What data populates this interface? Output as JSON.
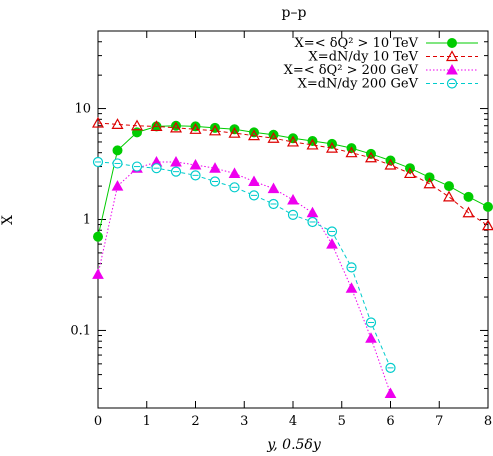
{
  "chart_data": {
    "type": "line",
    "title": "p–p",
    "xlabel": "y, 0.5δy",
    "ylabel": "X",
    "xlim": [
      0,
      8
    ],
    "ylim": [
      0.02,
      50
    ],
    "yscale": "log",
    "x_ticks": [
      "0",
      "1",
      "2",
      "3",
      "4",
      "5",
      "6",
      "7",
      "8"
    ],
    "y_ticks": [
      {
        "value": 0.1,
        "label": "0.1"
      },
      {
        "value": 1,
        "label": "1"
      },
      {
        "value": 10,
        "label": "10"
      }
    ],
    "grid": false,
    "legend_position": "top-right",
    "series": [
      {
        "name": "X=< δQ² > 10 TeV",
        "color": "#00cc00",
        "marker": "filled-circle",
        "line": "solid",
        "x": [
          0,
          0.4,
          0.8,
          1.2,
          1.6,
          2.0,
          2.4,
          2.8,
          3.2,
          3.6,
          4.0,
          4.4,
          4.8,
          5.2,
          5.6,
          6.0,
          6.4,
          6.8,
          7.2,
          7.6,
          8.0
        ],
        "y": [
          0.7,
          4.2,
          6.1,
          6.9,
          7.0,
          6.9,
          6.7,
          6.5,
          6.1,
          5.8,
          5.4,
          5.1,
          4.8,
          4.4,
          3.9,
          3.4,
          2.9,
          2.4,
          2.0,
          1.6,
          1.3
        ]
      },
      {
        "name": "X=dN/dy 10 TeV",
        "color": "#dd0000",
        "marker": "open-triangle",
        "line": "dashed",
        "x": [
          0,
          0.4,
          0.8,
          1.2,
          1.6,
          2.0,
          2.4,
          2.8,
          3.2,
          3.6,
          4.0,
          4.4,
          4.8,
          5.2,
          5.6,
          6.0,
          6.4,
          6.8,
          7.2,
          7.6,
          8.0
        ],
        "y": [
          7.4,
          7.2,
          7.0,
          6.9,
          6.7,
          6.5,
          6.3,
          6.0,
          5.7,
          5.4,
          5.0,
          4.7,
          4.4,
          4.0,
          3.6,
          3.1,
          2.6,
          2.1,
          1.6,
          1.15,
          0.88
        ]
      },
      {
        "name": "X=< δQ² > 200 GeV",
        "color": "#ee00ee",
        "marker": "filled-triangle",
        "line": "dotted",
        "x": [
          0,
          0.4,
          0.8,
          1.2,
          1.6,
          2.0,
          2.4,
          2.8,
          3.2,
          3.6,
          4.0,
          4.4,
          4.8,
          5.2,
          5.6,
          6.0
        ],
        "y": [
          0.32,
          2.0,
          2.9,
          3.3,
          3.3,
          3.1,
          2.9,
          2.6,
          2.2,
          1.9,
          1.5,
          1.15,
          0.6,
          0.24,
          0.085,
          0.027
        ]
      },
      {
        "name": "X=dN/dy 200 GeV",
        "color": "#00cccc",
        "marker": "open-circle",
        "line": "dashed",
        "x": [
          0,
          0.4,
          0.8,
          1.2,
          1.6,
          2.0,
          2.4,
          2.8,
          3.2,
          3.6,
          4.0,
          4.4,
          4.8,
          5.2,
          5.6,
          6.0
        ],
        "y": [
          3.3,
          3.2,
          3.0,
          2.9,
          2.7,
          2.5,
          2.2,
          1.95,
          1.65,
          1.38,
          1.1,
          0.95,
          0.78,
          0.37,
          0.118,
          0.046
        ]
      }
    ]
  }
}
